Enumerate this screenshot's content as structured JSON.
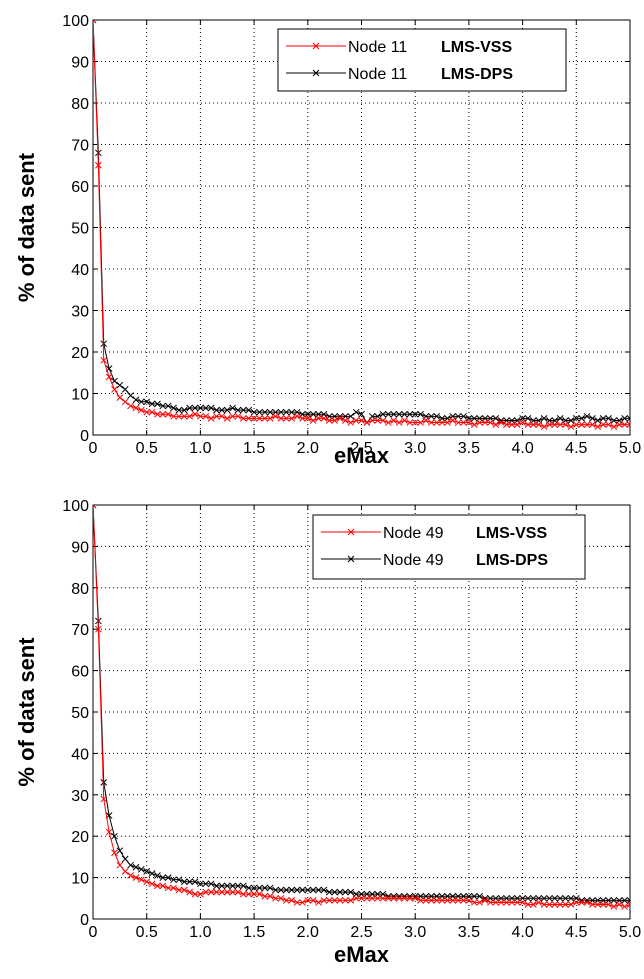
{
  "chart_data": [
    {
      "type": "line",
      "xlabel": "eMax",
      "ylabel": "% of data sent",
      "xlim": [
        0,
        5.0
      ],
      "ylim": [
        0,
        100
      ],
      "xticks": [
        "0",
        "0.5",
        "1.0",
        "1.5",
        "2.0",
        "2.5",
        "3.0",
        "3.5",
        "4.0",
        "4.5",
        "5.0"
      ],
      "yticks": [
        "0",
        "10",
        "20",
        "30",
        "40",
        "50",
        "60",
        "70",
        "80",
        "90",
        "100"
      ],
      "grid": true,
      "legend_position": "top-right",
      "x": [
        0,
        0.05,
        0.1,
        0.15,
        0.2,
        0.25,
        0.3,
        0.35,
        0.4,
        0.45,
        0.5,
        0.55,
        0.6,
        0.65,
        0.7,
        0.75,
        0.8,
        0.85,
        0.9,
        0.95,
        1.0,
        1.05,
        1.1,
        1.15,
        1.2,
        1.25,
        1.3,
        1.35,
        1.4,
        1.45,
        1.5,
        1.55,
        1.6,
        1.65,
        1.7,
        1.75,
        1.8,
        1.85,
        1.9,
        1.95,
        2.0,
        2.05,
        2.1,
        2.15,
        2.2,
        2.25,
        2.3,
        2.35,
        2.4,
        2.45,
        2.5,
        2.55,
        2.6,
        2.65,
        2.7,
        2.75,
        2.8,
        2.85,
        2.9,
        2.95,
        3.0,
        3.05,
        3.1,
        3.15,
        3.2,
        3.25,
        3.3,
        3.35,
        3.4,
        3.45,
        3.5,
        3.55,
        3.6,
        3.65,
        3.7,
        3.75,
        3.8,
        3.85,
        3.9,
        3.95,
        4.0,
        4.05,
        4.1,
        4.15,
        4.2,
        4.25,
        4.3,
        4.35,
        4.4,
        4.45,
        4.5,
        4.55,
        4.6,
        4.65,
        4.7,
        4.75,
        4.8,
        4.85,
        4.9,
        4.95,
        5.0
      ],
      "series": [
        {
          "name_prefix": "Node 11",
          "name_suffix": "LMS-VSS",
          "color": "#ff0000",
          "values": [
            100,
            65,
            18,
            14,
            11,
            9,
            8,
            7,
            6.5,
            6,
            5.5,
            5.5,
            5,
            5,
            5,
            4.5,
            4.5,
            4.5,
            4.5,
            5,
            4.5,
            4.5,
            4,
            4.5,
            4.5,
            4,
            4.5,
            4.5,
            4,
            4,
            4,
            4,
            4,
            4,
            4.5,
            4,
            4,
            4,
            4.5,
            4,
            4,
            3.5,
            4,
            4,
            3.5,
            3.5,
            4,
            3.5,
            3,
            3.5,
            3.5,
            3,
            3.5,
            3.5,
            3.5,
            3,
            3.5,
            3,
            3.5,
            3,
            3,
            3,
            3.5,
            3,
            3,
            3,
            3,
            3.5,
            3,
            3,
            3,
            2.5,
            3,
            3,
            3,
            2.5,
            3,
            2.5,
            2.5,
            2.5,
            3,
            2.5,
            2.5,
            2.5,
            2,
            2.5,
            2.5,
            2.5,
            2.5,
            2,
            2.5,
            2.5,
            2.5,
            2.5,
            2,
            2.5,
            2.5,
            2,
            2.5,
            2.5,
            2.5
          ]
        },
        {
          "name_prefix": "Node 11",
          "name_suffix": "LMS-DPS",
          "color": "#000000",
          "values": [
            100,
            68,
            22,
            16,
            13,
            12,
            11,
            9.5,
            8.5,
            8,
            8,
            7.5,
            7.5,
            7,
            7,
            6.5,
            6,
            6,
            6.5,
            6.5,
            6.5,
            6.5,
            6.5,
            6,
            6,
            6,
            6.5,
            6,
            6,
            6,
            5.5,
            5.5,
            5.5,
            5.5,
            5.5,
            5.5,
            5.5,
            5.5,
            5.5,
            5,
            5,
            5,
            5,
            5,
            4.5,
            4.5,
            4.5,
            4.5,
            4.5,
            5.5,
            5,
            3,
            4.5,
            4.5,
            5,
            5,
            5,
            5,
            5,
            5,
            5,
            5,
            4.5,
            4.5,
            4.5,
            4,
            4,
            4.5,
            4.5,
            4.5,
            4,
            4,
            4,
            4,
            4,
            4,
            3.5,
            3.5,
            3.5,
            3.5,
            4,
            4,
            3.5,
            3.5,
            4,
            3.5,
            3.5,
            4,
            3.5,
            3.5,
            4,
            4,
            4.5,
            4,
            3.5,
            4,
            4,
            3.5,
            3.5,
            4,
            4
          ]
        }
      ]
    },
    {
      "type": "line",
      "xlabel": "eMax",
      "ylabel": "% of data sent",
      "xlim": [
        0,
        5.0
      ],
      "ylim": [
        0,
        100
      ],
      "xticks": [
        "0",
        "0.5",
        "1.0",
        "1.5",
        "2.0",
        "2.5",
        "3.0",
        "3.5",
        "4.0",
        "4.5",
        "5.0"
      ],
      "yticks": [
        "0",
        "10",
        "20",
        "30",
        "40",
        "50",
        "60",
        "70",
        "80",
        "90",
        "100"
      ],
      "grid": true,
      "legend_position": "top-right",
      "x": [
        0,
        0.05,
        0.1,
        0.15,
        0.2,
        0.25,
        0.3,
        0.35,
        0.4,
        0.45,
        0.5,
        0.55,
        0.6,
        0.65,
        0.7,
        0.75,
        0.8,
        0.85,
        0.9,
        0.95,
        1.0,
        1.05,
        1.1,
        1.15,
        1.2,
        1.25,
        1.3,
        1.35,
        1.4,
        1.45,
        1.5,
        1.55,
        1.6,
        1.65,
        1.7,
        1.75,
        1.8,
        1.85,
        1.9,
        1.95,
        2.0,
        2.05,
        2.1,
        2.15,
        2.2,
        2.25,
        2.3,
        2.35,
        2.4,
        2.45,
        2.5,
        2.55,
        2.6,
        2.65,
        2.7,
        2.75,
        2.8,
        2.85,
        2.9,
        2.95,
        3.0,
        3.05,
        3.1,
        3.15,
        3.2,
        3.25,
        3.3,
        3.35,
        3.4,
        3.45,
        3.5,
        3.55,
        3.6,
        3.65,
        3.7,
        3.75,
        3.8,
        3.85,
        3.9,
        3.95,
        4.0,
        4.05,
        4.1,
        4.15,
        4.2,
        4.25,
        4.3,
        4.35,
        4.4,
        4.45,
        4.5,
        4.55,
        4.6,
        4.65,
        4.7,
        4.75,
        4.8,
        4.85,
        4.9,
        4.95,
        5.0
      ],
      "series": [
        {
          "name_prefix": "Node 49",
          "name_suffix": "LMS-VSS",
          "color": "#ff0000",
          "values": [
            100,
            70,
            29,
            21,
            16,
            13,
            11.5,
            10.5,
            10,
            9.5,
            9,
            8.5,
            8,
            8,
            7.5,
            7.5,
            7,
            7,
            6.5,
            6,
            6,
            6.5,
            6.5,
            6.5,
            6.5,
            6.5,
            6.5,
            6.5,
            6,
            6,
            6,
            6,
            5.5,
            5.5,
            5,
            5,
            4.5,
            4.5,
            4,
            4,
            4.5,
            4.5,
            4,
            4.5,
            4.5,
            4.5,
            4.5,
            4.5,
            4.5,
            5,
            5,
            5,
            5,
            5,
            5,
            5,
            5,
            5,
            5,
            5,
            5,
            4.5,
            4.5,
            4.5,
            4.5,
            4.5,
            4.5,
            4.5,
            4.5,
            4.5,
            4.5,
            4,
            4,
            4.5,
            4,
            4,
            4,
            4,
            4,
            4,
            4,
            3.5,
            3.5,
            4,
            3.5,
            3.5,
            3.5,
            3.5,
            3.5,
            3.5,
            4,
            4,
            4,
            3.5,
            3.5,
            3.5,
            3.5,
            3,
            3.5,
            3,
            3.5
          ]
        },
        {
          "name_prefix": "Node 49",
          "name_suffix": "LMS-DPS",
          "color": "#000000",
          "values": [
            100,
            72,
            33,
            25,
            20,
            16.5,
            14.5,
            13,
            12.5,
            12,
            11.5,
            11,
            10.5,
            10,
            10,
            9.5,
            9.5,
            9,
            9,
            9,
            8.5,
            8.5,
            8.5,
            8,
            8,
            8,
            8,
            8,
            8,
            7.5,
            7.5,
            7.5,
            7.5,
            7.5,
            7,
            7,
            7,
            7,
            7,
            7,
            7,
            7,
            7,
            7,
            6.5,
            6.5,
            6.5,
            6.5,
            6.5,
            6,
            6,
            6,
            6,
            6,
            6,
            5.5,
            5.5,
            5.5,
            5.5,
            5.5,
            5.5,
            5.5,
            5.5,
            5.5,
            5.5,
            5.5,
            5.5,
            5.5,
            5.5,
            5.5,
            5.5,
            5.5,
            5.5,
            5,
            5,
            5,
            5,
            5,
            5,
            5,
            5,
            5,
            5,
            5,
            5,
            5,
            5,
            5,
            5,
            5,
            5,
            4.5,
            4.5,
            4.5,
            4.5,
            4.5,
            4.5,
            4.5,
            4.5,
            4.5,
            4.5
          ]
        }
      ]
    }
  ]
}
